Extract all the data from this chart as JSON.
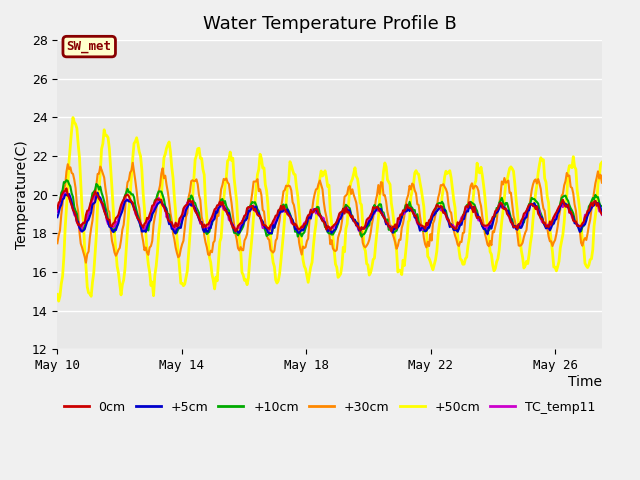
{
  "title": "Water Temperature Profile B",
  "xlabel": "Time",
  "ylabel": "Temperature(C)",
  "ylim": [
    12,
    28
  ],
  "xlim": [
    0,
    17.5
  ],
  "x_tick_labels": [
    "May 10",
    "May 14",
    "May 18",
    "May 22",
    "May 26"
  ],
  "x_tick_positions": [
    0,
    4,
    8,
    12,
    16
  ],
  "series": {
    "0cm": {
      "color": "#cc0000",
      "lw": 1.5
    },
    "+5cm": {
      "color": "#0000cc",
      "lw": 1.5
    },
    "+10cm": {
      "color": "#00aa00",
      "lw": 1.5
    },
    "+30cm": {
      "color": "#ff8800",
      "lw": 1.5
    },
    "+50cm": {
      "color": "#ffff00",
      "lw": 2.0
    },
    "TC_temp11": {
      "color": "#cc00cc",
      "lw": 1.5
    }
  },
  "legend_order": [
    "0cm",
    "+5cm",
    "+10cm",
    "+30cm",
    "+50cm",
    "TC_temp11"
  ],
  "sw_met_label": "SW_met",
  "sw_met_color": "#880000",
  "sw_met_bg": "#ffffcc",
  "fig_bg": "#f0f0f0",
  "plot_bg": "#e8e8e8",
  "grid_color": "#ffffff",
  "title_fontsize": 13,
  "axis_fontsize": 10,
  "tick_fontsize": 9,
  "legend_fontsize": 9
}
